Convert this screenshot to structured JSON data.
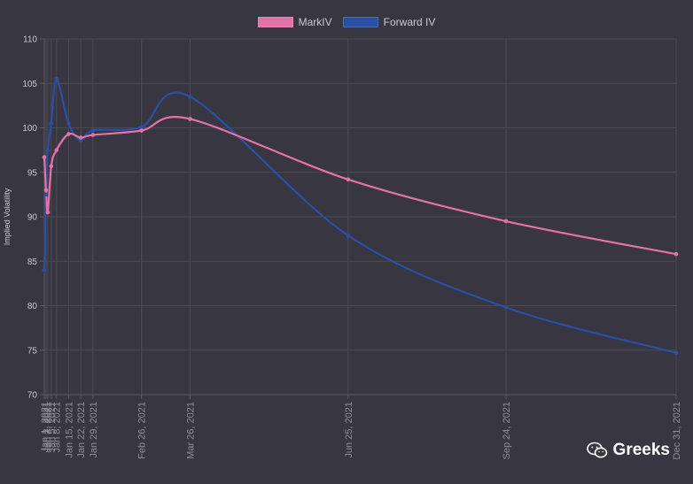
{
  "chart_data": {
    "type": "line",
    "ylabel": "Implied Volatility",
    "ylim": [
      70,
      110
    ],
    "yticks": [
      70,
      75,
      80,
      85,
      90,
      95,
      100,
      105,
      110
    ],
    "x": [
      "2021-01-01",
      "2021-01-02",
      "2021-01-03",
      "2021-01-05",
      "2021-01-08",
      "2021-01-15",
      "2021-01-22",
      "2021-01-29",
      "2021-02-26",
      "2021-03-26",
      "2021-06-25",
      "2021-09-24",
      "2021-12-31"
    ],
    "x_tick_labels": [
      "Jan 1, 2021",
      "Jan 2, 2021",
      "Jan 3, 2021",
      "Jan 5, 2021",
      "Jan 8, 2021",
      "Jan 15, 2021",
      "Jan 22, 2021",
      "Jan 29, 2021",
      "Feb 26, 2021",
      "Mar 26, 2021",
      "Jun 25, 2021",
      "Sep 24, 2021",
      "Dec 31, 2021"
    ],
    "grid": true,
    "legend_position": "top-center",
    "series": [
      {
        "name": "MarkIV",
        "color": "#e472a8",
        "values": [
          96.7,
          93.0,
          90.5,
          95.7,
          97.5,
          99.3,
          98.9,
          99.2,
          99.7,
          101.0,
          94.2,
          89.5,
          85.8
        ]
      },
      {
        "name": "Forward IV",
        "color": "#2a4fa3",
        "values": [
          84.0,
          92.5,
          97.5,
          100.5,
          105.5,
          100.5,
          98.6,
          99.7,
          100.1,
          103.5,
          87.9,
          79.8,
          74.7
        ]
      }
    ]
  },
  "watermark": {
    "icon": "wechat-icon",
    "text": "Greeks"
  }
}
